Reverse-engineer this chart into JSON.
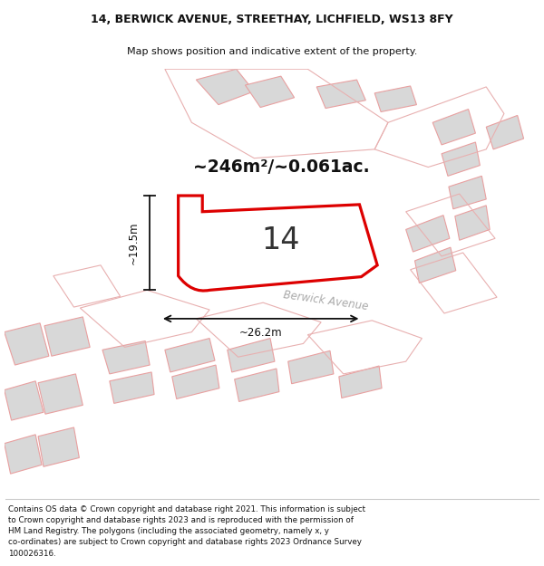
{
  "title_line1": "14, BERWICK AVENUE, STREETHAY, LICHFIELD, WS13 8FY",
  "title_line2": "Map shows position and indicative extent of the property.",
  "footer_lines": [
    "Contains OS data © Crown copyright and database right 2021. This information is subject",
    "to Crown copyright and database rights 2023 and is reproduced with the permission of",
    "HM Land Registry. The polygons (including the associated geometry, namely x, y",
    "co-ordinates) are subject to Crown copyright and database rights 2023 Ordnance Survey",
    "100026316."
  ],
  "area_label": "~246m²/~0.061ac.",
  "plot_number": "14",
  "dim_width": "~26.2m",
  "dim_height": "~19.5m",
  "road_label": "Berwick Avenue",
  "bg_color": "#ffffff",
  "plot_fill": "#ffffff",
  "plot_edge_color": "#dd0000",
  "building_fill": "#d8d8d8",
  "building_edge": "#e8a0a0",
  "road_outline_color": "#e8b0b0",
  "road_label_color": "#aaaaaa",
  "dim_color": "#111111",
  "text_color": "#111111",
  "area_text_color": "#111111",
  "title_color": "#111111"
}
